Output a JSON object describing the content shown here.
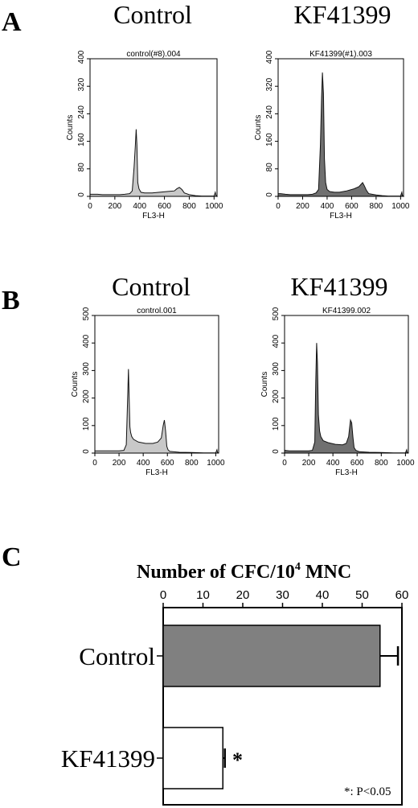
{
  "panels": {
    "A": {
      "label": "A",
      "headings": [
        "Control",
        "KF41399"
      ],
      "histograms": [
        {
          "file": "control(#8).004",
          "ylabel": "Counts",
          "xlabel": "FL3-H",
          "ylim": [
            0,
            400
          ],
          "yticks": [
            "0",
            "80",
            "160",
            "240",
            "320",
            "400"
          ],
          "xlim": [
            0,
            1024
          ],
          "xticks": [
            "0",
            "200",
            "400",
            "600",
            "800",
            "1000"
          ],
          "fill": "#c8c8c8"
        },
        {
          "file": "KF41399(#1).003",
          "ylabel": "Counts",
          "xlabel": "FL3-H",
          "ylim": [
            0,
            400
          ],
          "yticks": [
            "0",
            "80",
            "160",
            "240",
            "320",
            "400"
          ],
          "xlim": [
            0,
            1024
          ],
          "xticks": [
            "0",
            "200",
            "400",
            "600",
            "800",
            "1000"
          ],
          "fill": "#707070"
        }
      ]
    },
    "B": {
      "label": "B",
      "headings": [
        "Control",
        "KF41399"
      ],
      "histograms": [
        {
          "file": "control.001",
          "ylabel": "Counts",
          "xlabel": "FL3-H",
          "ylim": [
            0,
            500
          ],
          "yticks": [
            "0",
            "100",
            "200",
            "300",
            "400",
            "500"
          ],
          "xlim": [
            0,
            1024
          ],
          "xticks": [
            "0",
            "200",
            "400",
            "600",
            "800",
            "1000"
          ],
          "fill": "#c8c8c8"
        },
        {
          "file": "KF41399.002",
          "ylabel": "Counts",
          "xlabel": "FL3-H",
          "ylim": [
            0,
            500
          ],
          "yticks": [
            "0",
            "100",
            "200",
            "300",
            "400",
            "500"
          ],
          "xlim": [
            0,
            1024
          ],
          "xticks": [
            "0",
            "200",
            "400",
            "600",
            "800",
            "1000"
          ],
          "fill": "#707070"
        }
      ]
    },
    "C": {
      "label": "C",
      "title_main": "Number of CFC/10",
      "title_sup": "4",
      "title_tail": " MNC",
      "star": "*",
      "footnote": "*: P<0.05"
    }
  },
  "chart_data": [
    {
      "type": "area",
      "name": "control(#8).004",
      "x": [
        0,
        20,
        60,
        100,
        160,
        200,
        240,
        280,
        320,
        340,
        355,
        365,
        372,
        378,
        385,
        395,
        410,
        440,
        500,
        560,
        620,
        680,
        700,
        720,
        740,
        760,
        800,
        850,
        900,
        950,
        1000,
        1010,
        1015,
        1024
      ],
      "y": [
        6,
        6,
        6,
        5,
        5,
        5,
        5,
        6,
        8,
        16,
        85,
        145,
        195,
        150,
        40,
        22,
        12,
        10,
        10,
        12,
        14,
        16,
        22,
        26,
        20,
        10,
        5,
        2,
        1,
        1,
        1,
        12,
        3,
        0
      ],
      "xlim": [
        0,
        1024
      ],
      "ylim": [
        0,
        400
      ],
      "xlabel": "FL3-H",
      "ylabel": "Counts"
    },
    {
      "type": "area",
      "name": "KF41399(#1).003",
      "x": [
        0,
        20,
        60,
        100,
        160,
        200,
        240,
        280,
        310,
        330,
        345,
        355,
        362,
        370,
        378,
        388,
        400,
        420,
        460,
        500,
        560,
        620,
        660,
        690,
        705,
        720,
        740,
        800,
        850,
        900,
        950,
        1000,
        1010,
        1015,
        1024
      ],
      "y": [
        8,
        8,
        6,
        5,
        5,
        5,
        5,
        6,
        10,
        20,
        150,
        290,
        360,
        300,
        110,
        40,
        20,
        14,
        12,
        12,
        16,
        22,
        28,
        40,
        30,
        18,
        8,
        4,
        2,
        1,
        1,
        1,
        12,
        3,
        0
      ],
      "xlim": [
        0,
        1024
      ],
      "ylim": [
        0,
        400
      ],
      "xlabel": "FL3-H",
      "ylabel": "Counts"
    },
    {
      "type": "area",
      "name": "control.001",
      "x": [
        0,
        40,
        100,
        160,
        200,
        240,
        260,
        270,
        278,
        284,
        290,
        296,
        305,
        320,
        360,
        420,
        480,
        520,
        550,
        565,
        575,
        585,
        595,
        605,
        620,
        700,
        800,
        900,
        1000,
        1010,
        1015,
        1024
      ],
      "y": [
        8,
        8,
        8,
        8,
        8,
        10,
        30,
        180,
        305,
        200,
        95,
        75,
        60,
        50,
        40,
        35,
        35,
        40,
        55,
        100,
        120,
        80,
        25,
        12,
        6,
        3,
        2,
        1,
        1,
        12,
        2,
        0
      ],
      "xlim": [
        0,
        1024
      ],
      "ylim": [
        0,
        500
      ],
      "xlabel": "FL3-H",
      "ylabel": "Counts"
    },
    {
      "type": "area",
      "name": "KF41399.002",
      "x": [
        0,
        40,
        100,
        160,
        200,
        230,
        250,
        258,
        265,
        272,
        280,
        290,
        300,
        320,
        360,
        420,
        480,
        510,
        530,
        545,
        555,
        565,
        575,
        590,
        620,
        700,
        800,
        900,
        1000,
        1010,
        1015,
        1024
      ],
      "y": [
        10,
        8,
        8,
        8,
        8,
        10,
        40,
        260,
        400,
        330,
        140,
        80,
        60,
        45,
        38,
        32,
        30,
        35,
        60,
        120,
        110,
        60,
        20,
        10,
        5,
        3,
        2,
        1,
        1,
        12,
        2,
        0
      ],
      "xlim": [
        0,
        1024
      ],
      "ylim": [
        0,
        500
      ],
      "xlabel": "FL3-H",
      "ylabel": "Counts"
    },
    {
      "type": "bar",
      "orientation": "horizontal",
      "categories": [
        "Control",
        "KF41399"
      ],
      "values": [
        54.5,
        15
      ],
      "errors": [
        4.5,
        0.5
      ],
      "colors": [
        "#808080",
        "#ffffff"
      ],
      "xlim": [
        0,
        60
      ],
      "xticks": [
        0,
        10,
        20,
        30,
        40,
        50,
        60
      ],
      "title": "Number of CFC/10^4 MNC"
    }
  ]
}
